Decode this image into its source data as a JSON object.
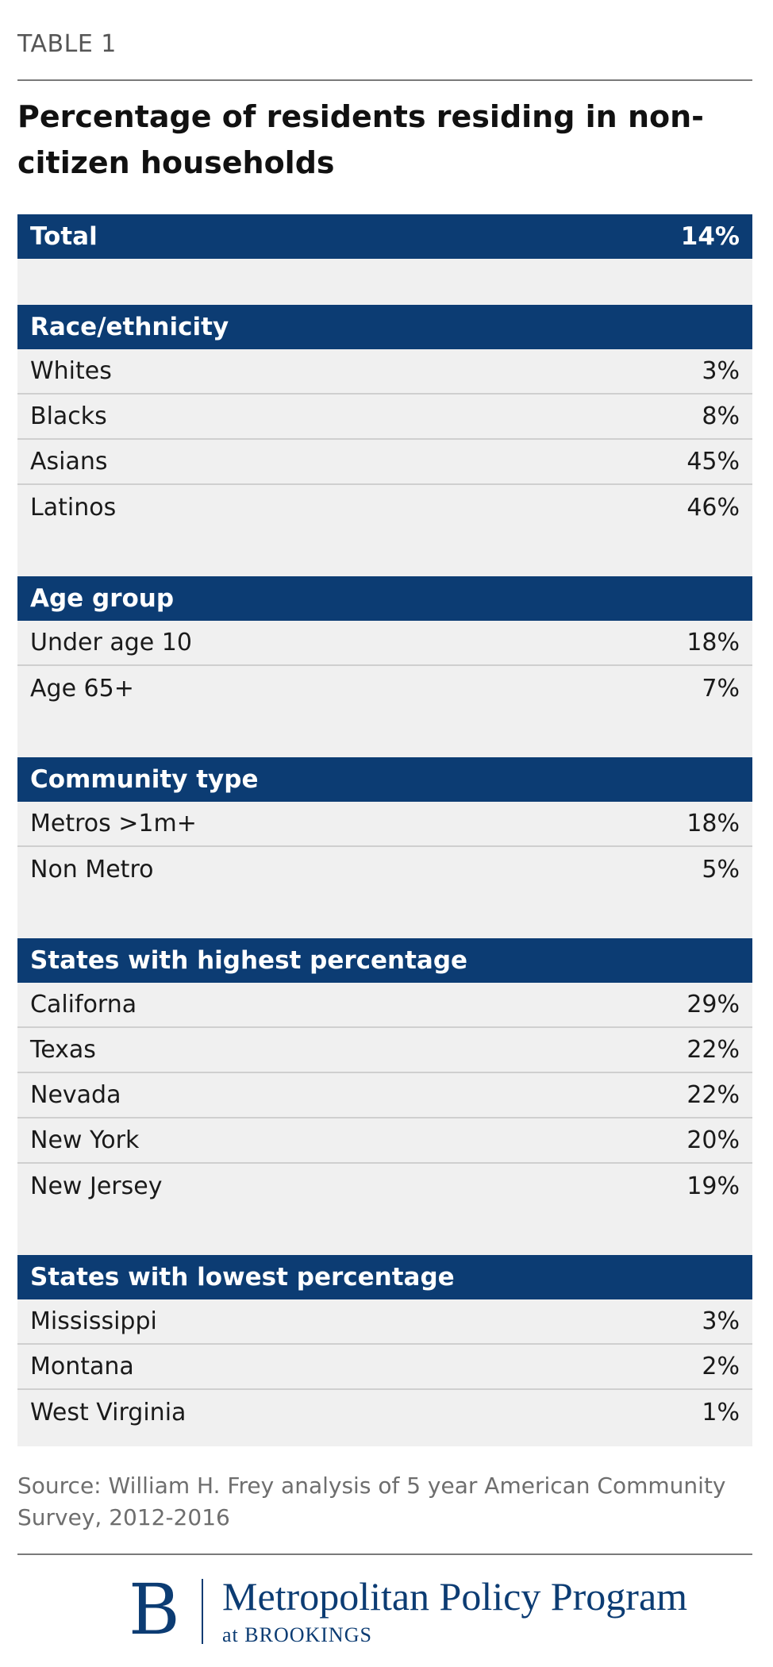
{
  "header": {
    "kicker": "TABLE 1",
    "title": "Percentage of residents residing in non-citizen households"
  },
  "table": {
    "total": {
      "label": "Total",
      "value": "14%"
    },
    "sections": [
      {
        "title": "Race/ethnicity",
        "rows": [
          {
            "label": "Whites",
            "value": "3%"
          },
          {
            "label": "Blacks",
            "value": "8%"
          },
          {
            "label": "Asians",
            "value": "45%"
          },
          {
            "label": "Latinos",
            "value": "46%"
          }
        ]
      },
      {
        "title": "Age group",
        "rows": [
          {
            "label": "Under age 10",
            "value": "18%"
          },
          {
            "label": "Age 65+",
            "value": "7%"
          }
        ]
      },
      {
        "title": "Community type",
        "rows": [
          {
            "label": "Metros >1m+",
            "value": "18%"
          },
          {
            "label": "Non Metro",
            "value": "5%"
          }
        ]
      },
      {
        "title": "States with highest percentage",
        "rows": [
          {
            "label": "Californa",
            "value": "29%"
          },
          {
            "label": "Texas",
            "value": "22%"
          },
          {
            "label": "Nevada",
            "value": "22%"
          },
          {
            "label": "New York",
            "value": "20%"
          },
          {
            "label": "New Jersey",
            "value": "19%"
          }
        ]
      },
      {
        "title": "States with lowest percentage",
        "rows": [
          {
            "label": "Mississippi",
            "value": "3%"
          },
          {
            "label": "Montana",
            "value": "2%"
          },
          {
            "label": "West Virginia",
            "value": "1%"
          }
        ]
      }
    ]
  },
  "footer": {
    "source": "Source: William H. Frey analysis of 5 year American Community Survey, 2012-2016",
    "logo_letter": "B",
    "logo_name": "Metropolitan Policy Program",
    "logo_sub": "at BROOKINGS"
  },
  "colors": {
    "header_band": "#0c3c73",
    "table_background": "#f0f0f0",
    "row_divider": "#cfcfcf"
  },
  "chart_data": {
    "type": "table",
    "title": "Percentage of residents residing in non-citizen households",
    "columns": [
      "Group",
      "Percentage"
    ],
    "total": {
      "label": "Total",
      "value": 14
    },
    "groups": [
      {
        "name": "Race/ethnicity",
        "categories": [
          "Whites",
          "Blacks",
          "Asians",
          "Latinos"
        ],
        "values": [
          3,
          8,
          45,
          46
        ]
      },
      {
        "name": "Age group",
        "categories": [
          "Under age 10",
          "Age 65+"
        ],
        "values": [
          18,
          7
        ]
      },
      {
        "name": "Community type",
        "categories": [
          "Metros >1m+",
          "Non Metro"
        ],
        "values": [
          18,
          5
        ]
      },
      {
        "name": "States with highest percentage",
        "categories": [
          "Californa",
          "Texas",
          "Nevada",
          "New York",
          "New Jersey"
        ],
        "values": [
          29,
          22,
          22,
          20,
          19
        ]
      },
      {
        "name": "States with lowest percentage",
        "categories": [
          "Mississippi",
          "Montana",
          "West Virginia"
        ],
        "values": [
          3,
          2,
          1
        ]
      }
    ]
  }
}
